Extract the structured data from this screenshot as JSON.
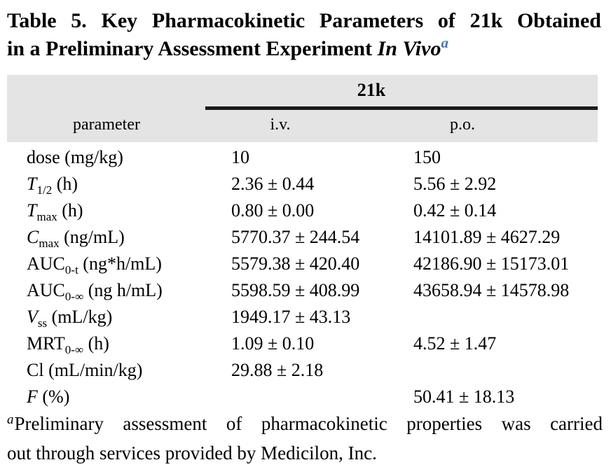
{
  "colors": {
    "header_bg": "#e4e4e4",
    "title_superscript_blue": "#4472c4",
    "rule_black": "#1a1a1a"
  },
  "title": {
    "line1": "Table 5. Key Pharmacokinetic Parameters of 21k Obtained",
    "line2_text": "in a Preliminary Assessment Experiment ",
    "line2_italic": "In Vivo",
    "footnote_marker": "a"
  },
  "table": {
    "group_header": "21k",
    "col_parameter": "parameter",
    "col_iv": "i.v.",
    "col_po": "p.o.",
    "rows": [
      {
        "main": "dose",
        "sub": "",
        "unit": " (mg/kg)",
        "iv": "10",
        "po": "150"
      },
      {
        "main": "T",
        "sub": "1/2",
        "unit": " (h)",
        "iv": "2.36 ± 0.44",
        "po": "5.56 ± 2.92"
      },
      {
        "main": "T",
        "sub": "max",
        "unit": " (h)",
        "iv": "0.80 ± 0.00",
        "po": "0.42 ± 0.14"
      },
      {
        "main": "C",
        "sub": "max",
        "unit": " (ng/mL)",
        "iv": "5770.37 ± 244.54",
        "po": "14101.89 ± 4627.29"
      },
      {
        "main": "AUC",
        "sub": "0-t",
        "unit": " (ng*h/mL)",
        "iv": "5579.38 ± 420.40",
        "po": "42186.90 ± 15173.01"
      },
      {
        "main": "AUC",
        "sub": "0-∞",
        "unit": " (ng h/mL)",
        "iv": "5598.59 ± 408.99",
        "po": "43658.94 ± 14578.98"
      },
      {
        "main": "V",
        "sub": "ss",
        "unit": " (mL/kg)",
        "iv": "1949.17 ± 43.13",
        "po": ""
      },
      {
        "main": "MRT",
        "sub": "0-∞",
        "unit": " (h)",
        "iv": "1.09 ± 0.10",
        "po": "4.52 ± 1.47"
      },
      {
        "main": "Cl",
        "sub": "",
        "unit": " (mL/min/kg)",
        "iv": "29.88 ± 2.18",
        "po": ""
      },
      {
        "main": "F",
        "sub": "",
        "unit": " (%)",
        "iv": "",
        "po": "50.41 ± 18.13"
      }
    ]
  },
  "footnote": {
    "marker": "a",
    "line1": "Preliminary assessment of pharmacokinetic properties was carried",
    "line2": "out through services provided by Medicilon, Inc."
  }
}
